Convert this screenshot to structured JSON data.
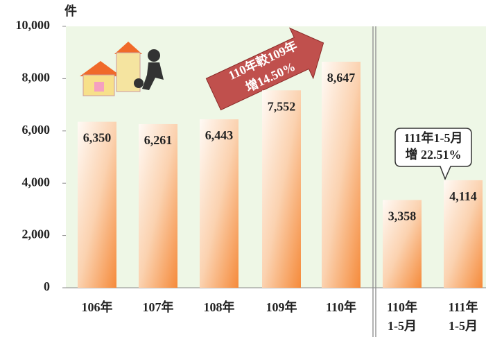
{
  "chart_data": {
    "type": "bar",
    "y_unit": "件",
    "categories": [
      "106年",
      "107年",
      "108年",
      "109年",
      "110年",
      "110年\n1-5月",
      "111年\n1-5月"
    ],
    "values": [
      6350,
      6261,
      6443,
      7552,
      8647,
      3358,
      4114
    ],
    "value_labels": [
      "6,350",
      "6,261",
      "6,443",
      "7,552",
      "8,647",
      "3,358",
      "4,114"
    ],
    "ylim": [
      0,
      10000
    ],
    "yticks": [
      0,
      {
        "value": 2000,
        "label": "2,000"
      },
      {
        "value": 4000,
        "label": "4,000"
      },
      {
        "value": 6000,
        "label": "6,000"
      },
      {
        "value": 8000,
        "label": "8,000"
      },
      {
        "value": 10000,
        "label": "10,000"
      }
    ],
    "annotations": [
      "110年較109年\n增14.50%",
      "111年1-5月\n增 22.51%"
    ]
  }
}
